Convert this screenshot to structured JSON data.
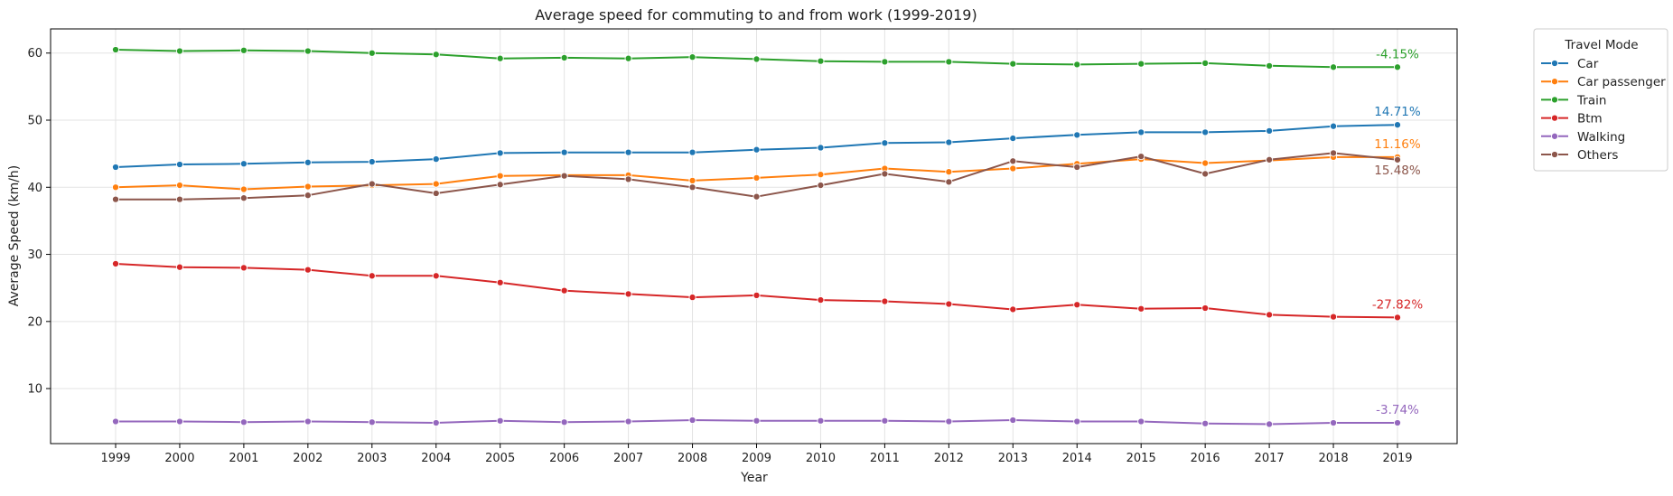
{
  "chart_data": {
    "type": "line",
    "title": "Average speed for commuting to and from work (1999-2019)",
    "xlabel": "Year",
    "ylabel": "Average Speed (km/h)",
    "x": [
      1999,
      2000,
      2001,
      2002,
      2003,
      2004,
      2005,
      2006,
      2007,
      2008,
      2009,
      2010,
      2011,
      2012,
      2013,
      2014,
      2015,
      2016,
      2017,
      2018,
      2019
    ],
    "ylim": [
      1.8,
      63.6
    ],
    "yticks": [
      10,
      20,
      30,
      40,
      50,
      60
    ],
    "grid": true,
    "legend": {
      "title": "Travel Mode",
      "placement": "outside-top-right"
    },
    "series": [
      {
        "name": "Car",
        "color": "#1f77b4",
        "annotation": "14.71%",
        "values": [
          43.0,
          43.4,
          43.5,
          43.7,
          43.8,
          44.2,
          45.1,
          45.2,
          45.2,
          45.2,
          45.6,
          45.9,
          46.6,
          46.7,
          47.3,
          47.8,
          48.2,
          48.2,
          48.4,
          49.1,
          49.3
        ]
      },
      {
        "name": "Car passenger",
        "color": "#ff7f0e",
        "annotation": "11.16%",
        "values": [
          40.0,
          40.3,
          39.7,
          40.1,
          40.3,
          40.5,
          41.7,
          41.8,
          41.8,
          41.0,
          41.4,
          41.9,
          42.8,
          42.3,
          42.8,
          43.5,
          44.2,
          43.6,
          44.0,
          44.5,
          44.5
        ]
      },
      {
        "name": "Train",
        "color": "#2ca02c",
        "annotation": "-4.15%",
        "values": [
          60.5,
          60.3,
          60.4,
          60.3,
          60.0,
          59.8,
          59.2,
          59.3,
          59.2,
          59.4,
          59.1,
          58.8,
          58.7,
          58.7,
          58.4,
          58.3,
          58.4,
          58.5,
          58.1,
          57.9,
          57.9
        ]
      },
      {
        "name": "Btm",
        "color": "#d62728",
        "annotation": "-27.82%",
        "values": [
          28.6,
          28.1,
          28.0,
          27.7,
          26.8,
          26.8,
          25.8,
          24.6,
          24.1,
          23.6,
          23.9,
          23.2,
          23.0,
          22.6,
          21.8,
          22.5,
          21.9,
          22.0,
          21.0,
          20.7,
          20.6
        ]
      },
      {
        "name": "Walking",
        "color": "#9467bd",
        "annotation": "-3.74%",
        "values": [
          5.1,
          5.1,
          5.0,
          5.1,
          5.0,
          4.9,
          5.2,
          5.0,
          5.1,
          5.3,
          5.2,
          5.2,
          5.2,
          5.1,
          5.3,
          5.1,
          5.1,
          4.8,
          4.7,
          4.9,
          4.9
        ]
      },
      {
        "name": "Others",
        "color": "#8c564b",
        "annotation": "15.48%",
        "values": [
          38.2,
          38.2,
          38.4,
          38.8,
          40.5,
          39.1,
          40.4,
          41.7,
          41.2,
          40.0,
          38.6,
          40.3,
          42.0,
          40.8,
          43.9,
          43.0,
          44.6,
          42.0,
          44.1,
          45.1,
          44.1
        ]
      }
    ]
  }
}
